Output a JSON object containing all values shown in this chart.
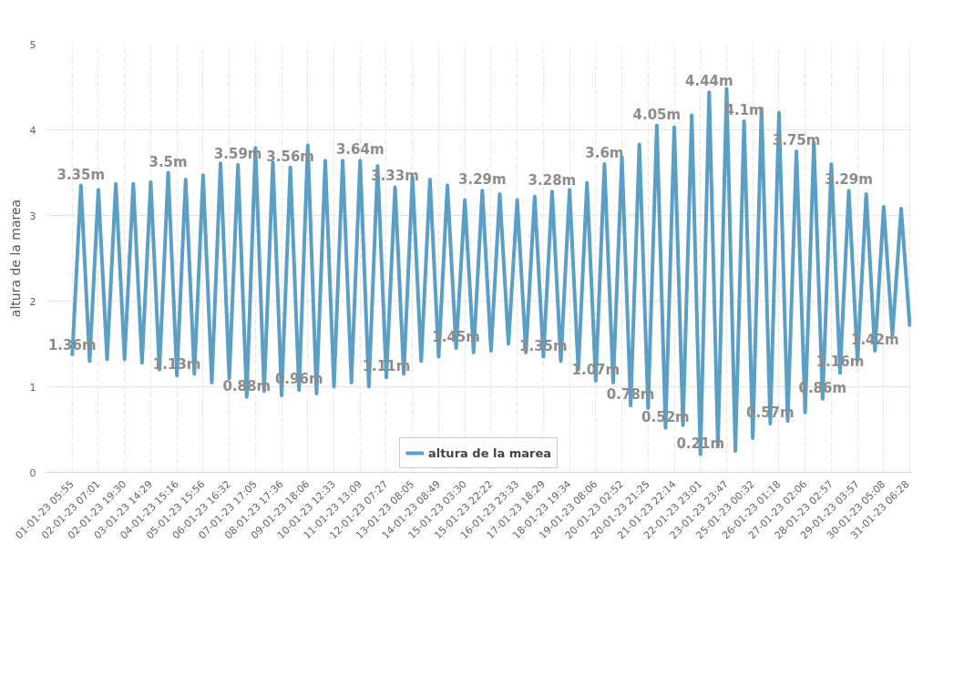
{
  "chart_data": {
    "type": "line",
    "ylabel": "altura de la marea",
    "categories": [
      "01-01-23 05:55",
      null,
      null,
      "02-01-23 07:01",
      null,
      null,
      "02-01-23 19:30",
      null,
      null,
      "03-01-23 14:29",
      null,
      null,
      "04-01-23 15:16",
      null,
      null,
      "05-01-23 15:56",
      null,
      null,
      "06-01-23 16:32",
      null,
      null,
      "07-01-23 17:05",
      null,
      null,
      "08-01-23 17:36",
      null,
      null,
      "09-01-23 18:06",
      null,
      null,
      "10-01-23 12:33",
      null,
      null,
      "11-01-23 13:09",
      null,
      null,
      "12-01-23 07:27",
      null,
      null,
      "13-01-23 08:05",
      null,
      null,
      "14-01-23 08:49",
      null,
      null,
      "15-01-23 03:30",
      null,
      null,
      "15-01-23 22:22",
      null,
      null,
      "16-01-23 23:33",
      null,
      null,
      "17-01-23 18:29",
      null,
      null,
      "18-01-23 19:34",
      null,
      null,
      "19-01-23 08:06",
      null,
      null,
      "20-01-23 02:52",
      null,
      null,
      "20-01-23 21:25",
      null,
      null,
      "21-01-23 22:14",
      null,
      null,
      "22-01-23 23:01",
      null,
      null,
      "23-01-23 23:47",
      null,
      null,
      "25-01-23 00:32",
      null,
      null,
      "26-01-23 01:18",
      null,
      null,
      "27-01-23 02:06",
      null,
      null,
      "28-01-23 02:57",
      null,
      null,
      "29-01-23 03:57",
      null,
      null,
      "30-01-23 05:08",
      null,
      null,
      "31-01-23 06:28"
    ],
    "series": [
      {
        "name": "altura de la marea",
        "color": "#5b9fc5",
        "values": [
          1.36,
          3.35,
          1.3,
          3.3,
          1.32,
          3.37,
          1.32,
          3.37,
          1.28,
          3.39,
          1.2,
          3.5,
          1.13,
          3.42,
          1.15,
          3.47,
          1.05,
          3.61,
          1.1,
          3.59,
          0.88,
          3.79,
          0.95,
          3.62,
          0.9,
          3.56,
          0.96,
          3.82,
          0.92,
          3.64,
          1.0,
          3.64,
          1.05,
          3.64,
          1.0,
          3.58,
          1.11,
          3.33,
          1.15,
          3.45,
          1.3,
          3.42,
          1.35,
          3.35,
          1.45,
          3.18,
          1.4,
          3.29,
          1.42,
          3.25,
          1.5,
          3.18,
          1.4,
          3.22,
          1.35,
          3.28,
          1.3,
          3.3,
          1.2,
          3.38,
          1.07,
          3.6,
          1.05,
          3.68,
          0.78,
          3.83,
          0.75,
          4.05,
          0.52,
          4.03,
          0.55,
          4.17,
          0.21,
          4.44,
          0.3,
          4.48,
          0.25,
          4.1,
          0.4,
          4.25,
          0.57,
          4.2,
          0.6,
          3.75,
          0.7,
          3.85,
          0.86,
          3.6,
          1.16,
          3.29,
          1.3,
          3.25,
          1.42,
          3.1,
          1.6,
          3.08,
          1.7
        ],
        "value_labels": [
          "1.36m",
          "3.35m",
          null,
          null,
          null,
          null,
          null,
          null,
          null,
          null,
          null,
          "3.5m",
          "1.13m",
          null,
          null,
          null,
          null,
          null,
          null,
          "3.59m",
          "0.88m",
          null,
          null,
          null,
          null,
          "3.56m",
          "0.96m",
          null,
          null,
          null,
          null,
          null,
          null,
          "3.64m",
          null,
          null,
          "1.11m",
          "3.33m",
          null,
          null,
          null,
          null,
          null,
          null,
          "1.45m",
          null,
          null,
          "3.29m",
          null,
          null,
          null,
          null,
          null,
          null,
          "1.35m",
          "3.28m",
          null,
          null,
          null,
          null,
          "1.07m",
          "3.6m",
          null,
          null,
          "0.78m",
          null,
          null,
          "4.05m",
          "0.52m",
          null,
          null,
          null,
          "0.21m",
          "4.44m",
          null,
          null,
          null,
          "4.1m",
          null,
          null,
          "0.57m",
          null,
          null,
          "3.75m",
          null,
          null,
          "0.86m",
          null,
          "1.16m",
          "3.29m",
          null,
          null,
          "1.42m",
          null,
          null,
          null,
          null
        ]
      }
    ],
    "ylim": [
      0,
      5
    ],
    "yticks": [
      0,
      1,
      2,
      3,
      4,
      5
    ],
    "grid": true,
    "legend": "bottom",
    "marker": "none",
    "line_style": "solid"
  }
}
